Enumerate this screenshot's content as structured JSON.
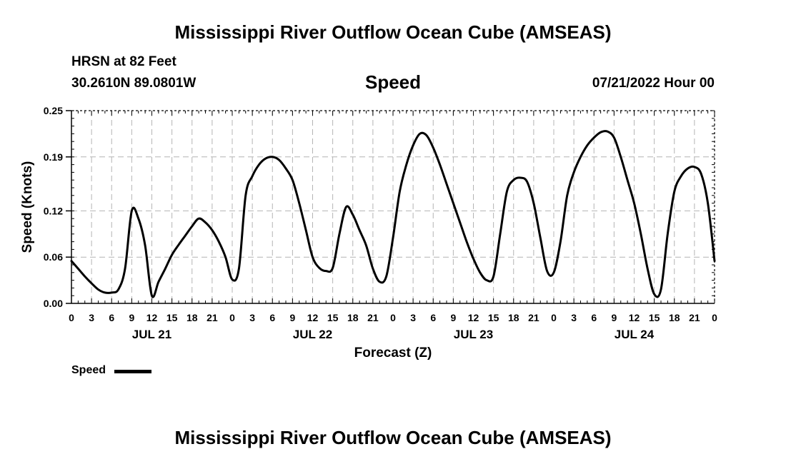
{
  "header": {
    "title": "Mississippi River Outflow Ocean Cube (AMSEAS)",
    "station": "HRSN at 82 Feet",
    "coordinates": "30.2610N  89.0801W",
    "subtitle": "Speed",
    "date": "07/21/2022 Hour 00"
  },
  "footer": {
    "title": "Mississippi River Outflow Ocean Cube (AMSEAS)"
  },
  "chart_data": {
    "type": "line",
    "title": "Speed",
    "xlabel": "Forecast (Z)",
    "ylabel": "Speed (Knots)",
    "xlim": [
      0,
      96
    ],
    "ylim": [
      0,
      0.25
    ],
    "y_ticks": [
      0.0,
      0.06,
      0.12,
      0.19,
      0.25
    ],
    "y_tick_labels": [
      "0.00",
      "0.06",
      "0.12",
      "0.19",
      "0.25"
    ],
    "x_tick_hours": [
      0,
      3,
      6,
      9,
      12,
      15,
      18,
      21,
      24,
      27,
      30,
      33,
      36,
      39,
      42,
      45,
      48,
      51,
      54,
      57,
      60,
      63,
      66,
      69,
      72,
      75,
      78,
      81,
      84,
      87,
      90,
      93,
      96
    ],
    "x_tick_labels": [
      "0",
      "3",
      "6",
      "9",
      "12",
      "15",
      "18",
      "21",
      "0",
      "3",
      "6",
      "9",
      "12",
      "15",
      "18",
      "21",
      "0",
      "3",
      "6",
      "9",
      "12",
      "15",
      "18",
      "21",
      "0",
      "3",
      "6",
      "9",
      "12",
      "15",
      "18",
      "21",
      "0"
    ],
    "day_labels": [
      {
        "label": "JUL 21",
        "hour": 12
      },
      {
        "label": "JUL 22",
        "hour": 36
      },
      {
        "label": "JUL 23",
        "hour": 60
      },
      {
        "label": "JUL 24",
        "hour": 84
      }
    ],
    "grid": true,
    "legend": {
      "position": "bottom-left",
      "entries": [
        "Speed"
      ]
    },
    "series": [
      {
        "name": "Speed",
        "x": [
          0,
          1,
          2,
          3,
          4,
          5,
          6,
          7,
          8,
          9,
          10,
          11,
          12,
          13,
          14,
          15,
          16,
          17,
          18,
          19,
          20,
          21,
          22,
          23,
          24,
          25,
          26,
          27,
          28,
          29,
          30,
          31,
          32,
          33,
          34,
          35,
          36,
          37,
          38,
          39,
          40,
          41,
          42,
          43,
          44,
          45,
          46,
          47,
          48,
          49,
          50,
          51,
          52,
          53,
          54,
          55,
          56,
          57,
          58,
          59,
          60,
          61,
          62,
          63,
          64,
          65,
          66,
          67,
          68,
          69,
          70,
          71,
          72,
          73,
          74,
          75,
          76,
          77,
          78,
          79,
          80,
          81,
          82,
          83,
          84,
          85,
          86,
          87,
          88,
          89,
          90,
          91,
          92,
          93,
          94,
          95,
          96
        ],
        "values": [
          0.055,
          0.045,
          0.035,
          0.026,
          0.018,
          0.014,
          0.014,
          0.018,
          0.045,
          0.12,
          0.11,
          0.075,
          0.01,
          0.028,
          0.045,
          0.063,
          0.076,
          0.088,
          0.1,
          0.11,
          0.105,
          0.095,
          0.08,
          0.06,
          0.031,
          0.045,
          0.14,
          0.165,
          0.18,
          0.188,
          0.19,
          0.186,
          0.175,
          0.16,
          0.13,
          0.095,
          0.06,
          0.046,
          0.042,
          0.046,
          0.09,
          0.125,
          0.115,
          0.095,
          0.075,
          0.045,
          0.028,
          0.035,
          0.085,
          0.145,
          0.18,
          0.205,
          0.22,
          0.218,
          0.202,
          0.18,
          0.155,
          0.13,
          0.105,
          0.08,
          0.058,
          0.04,
          0.03,
          0.035,
          0.09,
          0.145,
          0.16,
          0.163,
          0.158,
          0.13,
          0.085,
          0.042,
          0.04,
          0.08,
          0.14,
          0.17,
          0.19,
          0.205,
          0.215,
          0.222,
          0.223,
          0.215,
          0.19,
          0.16,
          0.13,
          0.09,
          0.045,
          0.012,
          0.018,
          0.09,
          0.145,
          0.165,
          0.175,
          0.177,
          0.168,
          0.13,
          0.055
        ]
      }
    ]
  }
}
